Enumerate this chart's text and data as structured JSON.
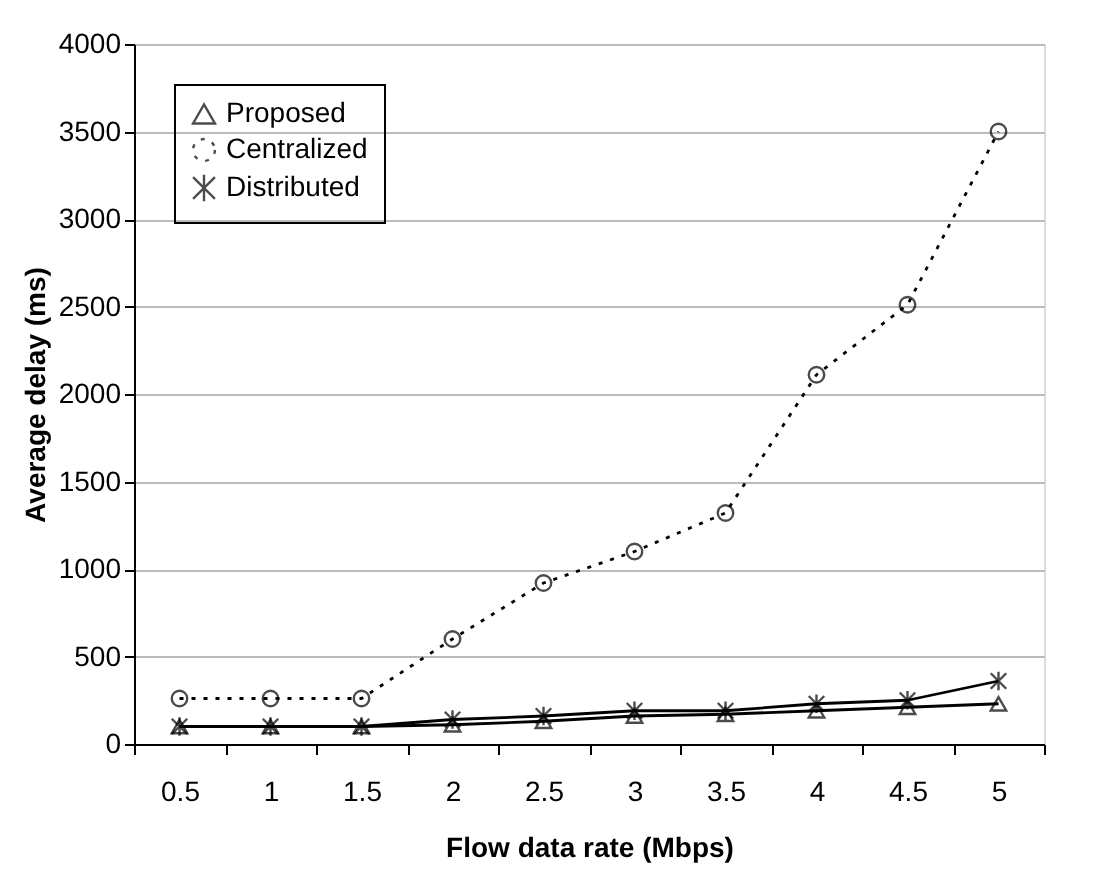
{
  "chart_data": {
    "type": "line",
    "xlabel": "Flow data rate (Mbps)",
    "ylabel": "Average delay (ms)",
    "categories": [
      "0.5",
      "1",
      "1.5",
      "2",
      "2.5",
      "3",
      "3.5",
      "4",
      "4.5",
      "5"
    ],
    "series": [
      {
        "name": "Proposed",
        "color": "#000000",
        "marker": "triangle",
        "line_style": "solid",
        "values": [
          100,
          100,
          100,
          110,
          130,
          160,
          170,
          190,
          210,
          230
        ]
      },
      {
        "name": "Centralized",
        "color": "#000000",
        "marker": "circle",
        "line_style": "dotted",
        "values": [
          260,
          260,
          260,
          600,
          920,
          1100,
          1320,
          2110,
          2510,
          3500
        ]
      },
      {
        "name": "Distributed",
        "color": "#000000",
        "marker": "cross",
        "line_style": "solid",
        "values": [
          100,
          100,
          100,
          140,
          160,
          190,
          190,
          230,
          250,
          360
        ]
      }
    ],
    "ylim": [
      0,
      4000
    ],
    "yticks": [
      0,
      500,
      1000,
      1500,
      2000,
      2500,
      3000,
      3500,
      4000
    ],
    "grid": "y",
    "legend": "top left"
  }
}
